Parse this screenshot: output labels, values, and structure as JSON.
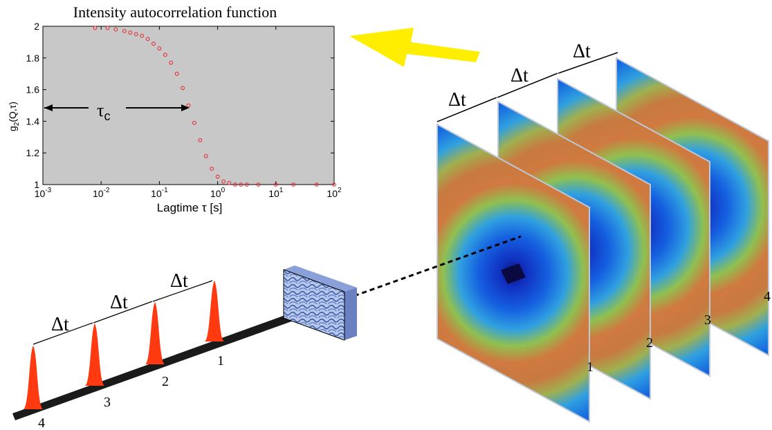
{
  "chart_data": {
    "type": "scatter",
    "title": "Intensity autocorrelation function",
    "xlabel": "Lagtime τ  [s]",
    "ylabel": "g₂(Q,τ)",
    "x_scale": "log",
    "xlim": [
      0.001,
      100
    ],
    "ylim": [
      1,
      2
    ],
    "x_ticks": [
      {
        "base": "10",
        "exp": "-3"
      },
      {
        "base": "10",
        "exp": "-2"
      },
      {
        "base": "10",
        "exp": "-1"
      },
      {
        "base": "10",
        "exp": "0"
      },
      {
        "base": "10",
        "exp": "1"
      },
      {
        "base": "10",
        "exp": "2"
      }
    ],
    "y_ticks": [
      "1",
      "1.2",
      "1.4",
      "1.6",
      "1.8",
      "2"
    ],
    "background": "#c8c8c8",
    "marker_color": "#e8202a",
    "tau_c": 0.45,
    "tau_c_label": "τ",
    "tau_c_subscript": "c",
    "series": [
      {
        "x": [
          0.0079,
          0.0129,
          0.0178,
          0.0251,
          0.0316,
          0.0398,
          0.0501,
          0.0631,
          0.0794,
          0.1,
          0.126,
          0.158,
          0.2,
          0.251,
          0.316,
          0.398,
          0.501,
          0.631,
          0.794,
          1.0,
          1.26,
          1.58,
          2.0,
          2.51,
          3.16,
          5.0,
          10,
          20,
          50,
          100
        ],
        "y": [
          1.99,
          1.99,
          1.98,
          1.97,
          1.96,
          1.95,
          1.94,
          1.92,
          1.89,
          1.86,
          1.82,
          1.77,
          1.7,
          1.61,
          1.5,
          1.39,
          1.28,
          1.18,
          1.1,
          1.05,
          1.02,
          1.01,
          1.0,
          1.0,
          1.0,
          1.0,
          1.0,
          1.0,
          1.0,
          1.0
        ]
      }
    ]
  },
  "diagram": {
    "delta_label": "Δt",
    "pulse_labels": [
      "1",
      "2",
      "3",
      "4"
    ],
    "frame_labels": [
      "1",
      "2",
      "3",
      "4"
    ],
    "pulse_color": "#ff3a10",
    "arrow_color": "#ffee00"
  }
}
